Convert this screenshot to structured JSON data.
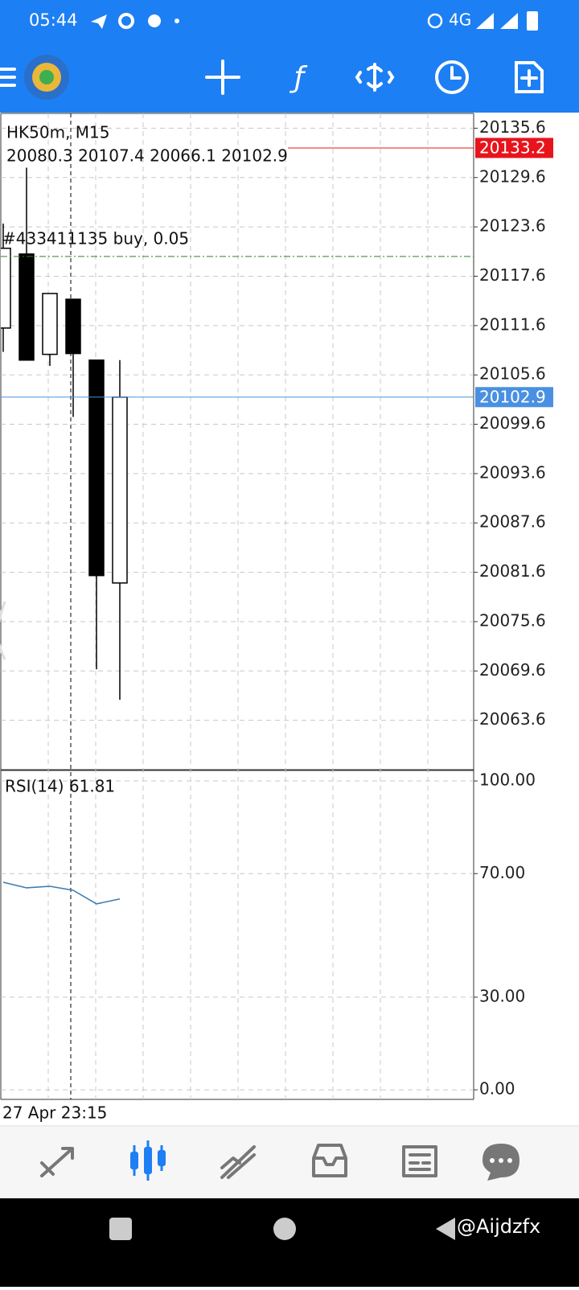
{
  "status_bar": {
    "time": "05:44",
    "network": "4G"
  },
  "chart_data": [
    {
      "type": "candlestick",
      "title": "HK50m, M15",
      "ohlc_text": "20080.3 20107.4 20066.1 20102.9",
      "order_text": "#433411135 buy, 0.05",
      "order_price": 20120.0,
      "ask": 20133.2,
      "bid": 20102.9,
      "ask_color": "#e8141c",
      "bid_color": "#4a90e2",
      "categories": [
        null,
        null,
        null,
        null,
        null,
        null
      ],
      "open": [
        20111.3,
        20120.3,
        20108.1,
        20114.8,
        20107.4,
        20080.3
      ],
      "high": [
        20124.0,
        20130.8,
        20115.5,
        20114.8,
        20107.4,
        20107.4
      ],
      "low": [
        20108.4,
        20107.4,
        20106.7,
        20100.5,
        20069.8,
        20066.1
      ],
      "close": [
        20121.0,
        20107.4,
        20115.5,
        20108.2,
        20081.2,
        20102.9
      ],
      "ylim": [
        20057.6,
        20137.4
      ],
      "yticks": [
        20135.6,
        20129.6,
        20123.6,
        20117.6,
        20111.6,
        20105.6,
        20099.6,
        20093.6,
        20087.6,
        20081.6,
        20075.6,
        20069.6,
        20063.6
      ],
      "grid": true
    },
    {
      "type": "line",
      "title": "RSI(14) 61.81",
      "color": "#3b7bb0",
      "categories": [
        null,
        null,
        null,
        null,
        null,
        null
      ],
      "values": [
        67.2,
        65.4,
        65.9,
        64.6,
        60.2,
        61.81
      ],
      "ylim": [
        -3.1,
        103.4
      ],
      "yticks": [
        {
          "value": 100,
          "label": "100.00"
        },
        {
          "value": 70,
          "label": "70.00"
        },
        {
          "value": 30,
          "label": "30.00"
        },
        {
          "value": 0,
          "label": "0.00"
        }
      ],
      "grid": true
    }
  ],
  "time_label": "27 Apr 23:15",
  "watermark": "@Aijdzfx"
}
